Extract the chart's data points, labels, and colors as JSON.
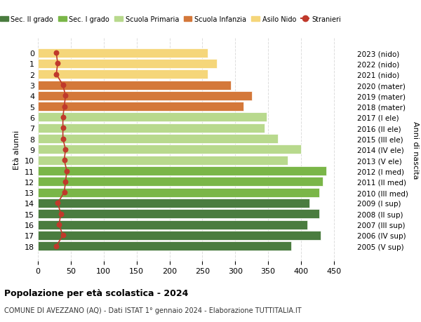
{
  "ages": [
    0,
    1,
    2,
    3,
    4,
    5,
    6,
    7,
    8,
    9,
    10,
    11,
    12,
    13,
    14,
    15,
    16,
    17,
    18
  ],
  "years": [
    "2023 (nido)",
    "2022 (nido)",
    "2021 (nido)",
    "2020 (mater)",
    "2019 (mater)",
    "2018 (mater)",
    "2017 (I ele)",
    "2016 (II ele)",
    "2015 (III ele)",
    "2014 (IV ele)",
    "2013 (V ele)",
    "2012 (I med)",
    "2011 (II med)",
    "2010 (III med)",
    "2009 (I sup)",
    "2008 (II sup)",
    "2007 (III sup)",
    "2006 (IV sup)",
    "2005 (V sup)"
  ],
  "bar_values": [
    258,
    272,
    258,
    293,
    325,
    312,
    348,
    345,
    365,
    400,
    380,
    438,
    433,
    428,
    413,
    428,
    410,
    430,
    385
  ],
  "bar_colors": [
    "#f5d67a",
    "#f5d67a",
    "#f5d67a",
    "#d4783a",
    "#d4783a",
    "#d4783a",
    "#b8d98d",
    "#b8d98d",
    "#b8d98d",
    "#b8d98d",
    "#b8d98d",
    "#7ab648",
    "#7ab648",
    "#7ab648",
    "#4a7c3f",
    "#4a7c3f",
    "#4a7c3f",
    "#4a7c3f",
    "#4a7c3f"
  ],
  "stranieri_values": [
    28,
    30,
    28,
    38,
    42,
    40,
    38,
    38,
    38,
    42,
    40,
    44,
    42,
    40,
    30,
    35,
    32,
    38,
    28
  ],
  "ylabel_left": "Età alunni",
  "ylabel_right": "Anni di nascita",
  "xlim": [
    0,
    480
  ],
  "xticks": [
    0,
    50,
    100,
    150,
    200,
    250,
    300,
    350,
    400,
    450
  ],
  "title": "Popolazione per età scolastica - 2024",
  "subtitle": "COMUNE DI AVEZZANO (AQ) - Dati ISTAT 1° gennaio 2024 - Elaborazione TUTTITALIA.IT",
  "legend_labels": [
    "Sec. II grado",
    "Sec. I grado",
    "Scuola Primaria",
    "Scuola Infanzia",
    "Asilo Nido",
    "Stranieri"
  ],
  "legend_colors": [
    "#4a7c3f",
    "#7ab648",
    "#b8d98d",
    "#d4783a",
    "#f5d67a",
    "#c0392b"
  ],
  "stranieri_color": "#c0392b",
  "background_color": "#ffffff",
  "bar_edge_color": "#ffffff",
  "grid_color": "#dddddd"
}
